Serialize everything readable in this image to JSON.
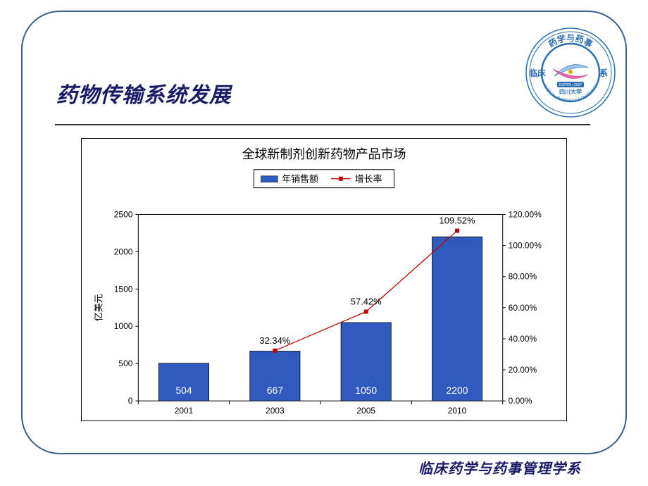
{
  "title": "药物传输系统发展",
  "title_color": "#1a1a66",
  "footer": "临床药学与药事管理学系",
  "footer_color": "#1a1a66",
  "logo": {
    "outer_text_top": "药学与药事",
    "outer_text_bottom": "管理学",
    "outer_left": "临床",
    "outer_right": "系",
    "ring_color": "#2a6fb5",
    "inner_text": "四川大学",
    "inner_sub": "DCPPA • 2007",
    "swoosh_a": "#e06aa8",
    "swoosh_b": "#a0c4e8",
    "background": "#ffffff"
  },
  "chart": {
    "type": "bar+line",
    "title": "全球新制剂创新药物产品市场",
    "title_fontsize": 18,
    "title_color": "#000000",
    "legend": {
      "bar_label": "年销售额",
      "line_label": "增长率",
      "border_color": "#000000",
      "bar_marker_color": "#2f5bbf",
      "line_marker_color": "#c00000"
    },
    "x_categories": [
      "2001",
      "2003",
      "2005",
      "2010"
    ],
    "bars": {
      "values": [
        504,
        667,
        1050,
        2200
      ],
      "labels": [
        "504",
        "667",
        "1050",
        "2200"
      ],
      "label_color": "#ffffff",
      "label_fontsize": 14,
      "fill": "#2f5bbf",
      "stroke": "#000000",
      "width_ratio": 0.55
    },
    "line": {
      "values": [
        null,
        32.34,
        57.42,
        109.52
      ],
      "labels": [
        "",
        "32.34%",
        "57.42%",
        "109.52%"
      ],
      "label_color": "#000000",
      "label_fontsize": 13,
      "color": "#c00000",
      "marker": "square",
      "marker_size": 6,
      "line_width": 1.3
    },
    "y_left": {
      "label": "亿美元",
      "min": 0,
      "max": 2500,
      "tick_step": 500,
      "ticks": [
        "0",
        "500",
        "1000",
        "1500",
        "2000",
        "2500"
      ],
      "fontsize": 12
    },
    "y_right": {
      "min": 0.0,
      "max": 1.2,
      "tick_step": 0.2,
      "ticks": [
        "0.00%",
        "20.00%",
        "40.00%",
        "60.00%",
        "80.00%",
        "100.00%",
        "120.00%"
      ],
      "fontsize": 12
    },
    "x_fontsize": 12,
    "plot_border": "#000000",
    "background": "#ffffff",
    "text_color": "#000000"
  }
}
